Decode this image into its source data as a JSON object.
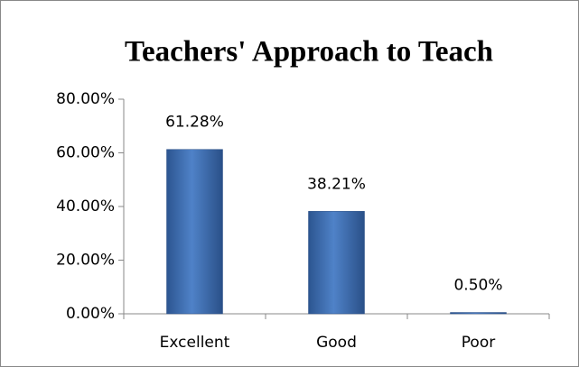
{
  "chart_data": {
    "type": "bar",
    "title": "Teachers' Approach to Teach",
    "categories": [
      "Excellent",
      "Good",
      "Poor"
    ],
    "values": [
      61.28,
      38.21,
      0.5
    ],
    "value_labels": [
      "61.28%",
      "38.21%",
      "0.50%"
    ],
    "color": "#3f6fb5",
    "ylim": [
      0,
      80
    ],
    "yticks": [
      {
        "value": 0,
        "label": "0.00%"
      },
      {
        "value": 20,
        "label": "20.00%"
      },
      {
        "value": 40,
        "label": "40.00%"
      },
      {
        "value": 60,
        "label": "60.00%"
      },
      {
        "value": 80,
        "label": "80.00%"
      }
    ],
    "grid": false
  }
}
